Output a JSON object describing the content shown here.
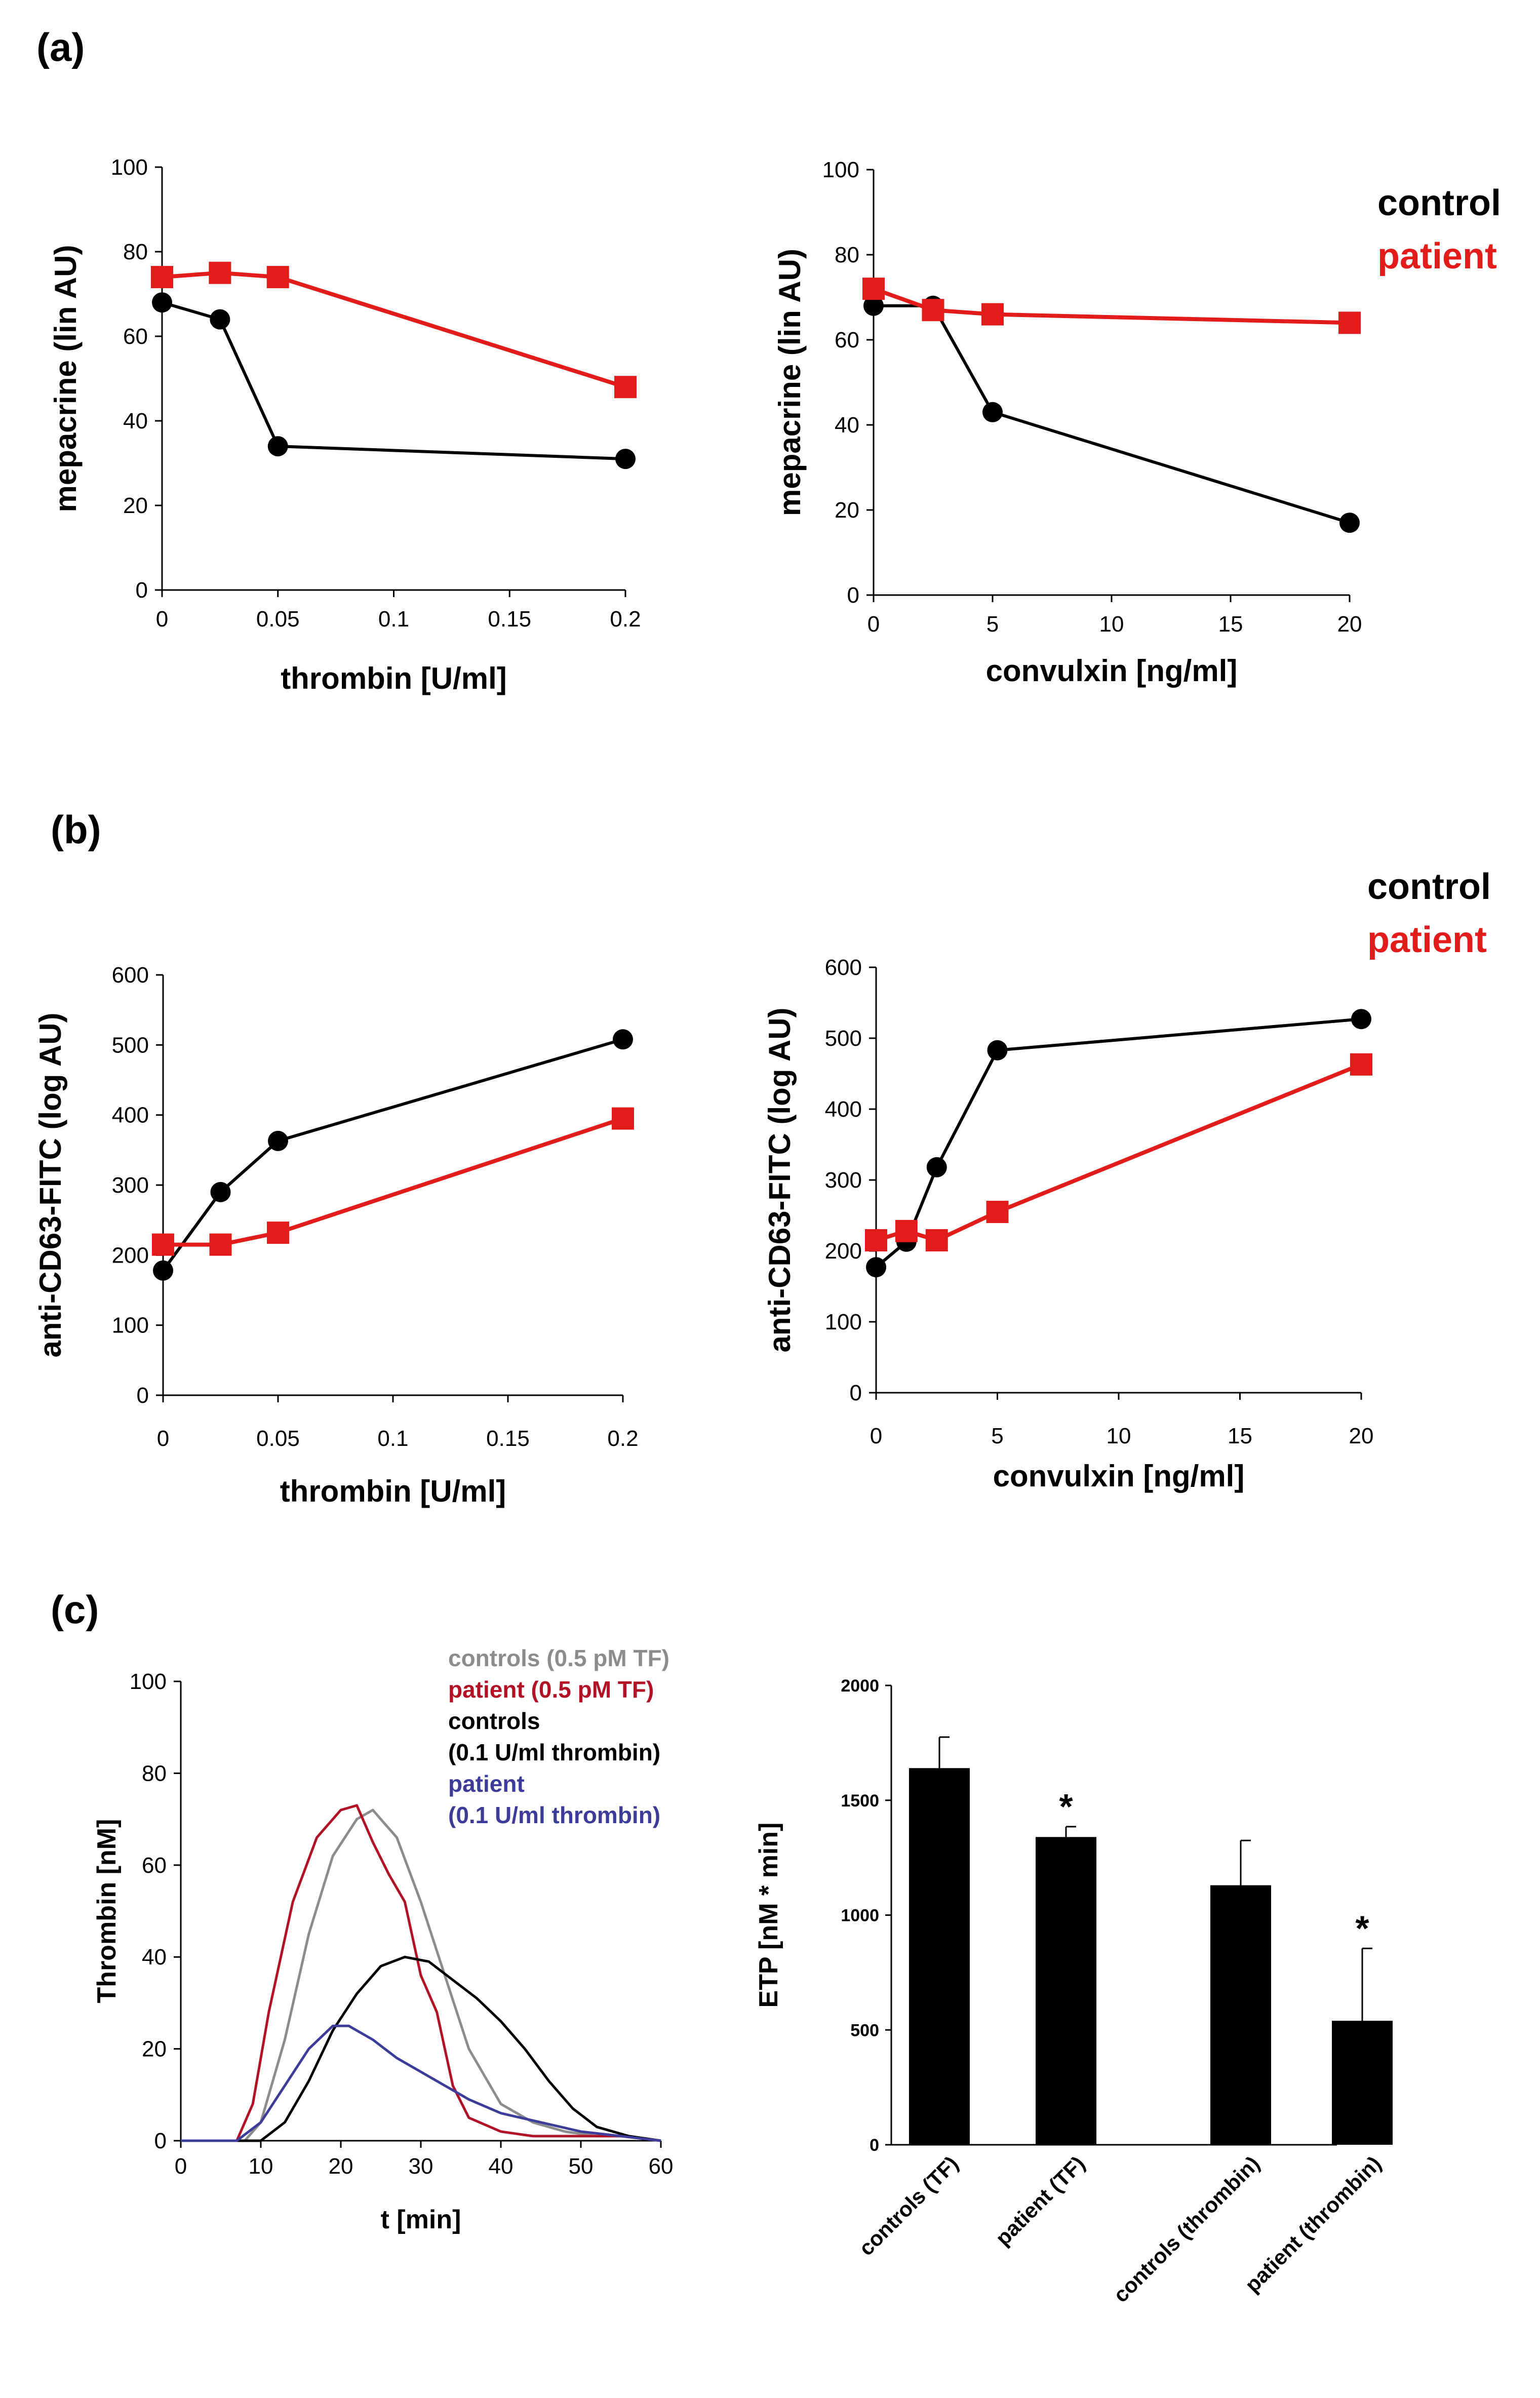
{
  "panels": {
    "a": "(a)",
    "b": "(b)",
    "c": "(c)"
  },
  "colors": {
    "control": "#000000",
    "patient": "#e21b1b",
    "controls_tf": "#8c8c8c",
    "patient_tf": "#b11226",
    "controls_thrombin": "#000000",
    "patient_thrombin": "#3d3d99"
  },
  "chart_data": [
    {
      "id": "a-left",
      "type": "line",
      "title": "",
      "xlabel": "thrombin [U/ml]",
      "ylabel": "mepacrine (lin AU)",
      "xlim": [
        0,
        0.2
      ],
      "ylim": [
        0,
        100
      ],
      "xticks": [
        0,
        0.05,
        0.1,
        0.15,
        0.2
      ],
      "xtick_labels": [
        "0",
        "0.05",
        "0.1",
        "0.15",
        "0.2"
      ],
      "yticks": [
        0,
        20,
        40,
        60,
        80,
        100
      ],
      "series": [
        {
          "name": "control",
          "marker": "circle",
          "x": [
            0,
            0.025,
            0.05,
            0.2
          ],
          "y": [
            68,
            64,
            34,
            31
          ]
        },
        {
          "name": "patient",
          "marker": "square",
          "x": [
            0,
            0.025,
            0.05,
            0.2
          ],
          "y": [
            74,
            75,
            74,
            48
          ]
        }
      ]
    },
    {
      "id": "a-right",
      "type": "line",
      "title": "",
      "xlabel": "convulxin [ng/ml]",
      "ylabel": "mepacrine (lin AU)",
      "xlim": [
        0,
        20
      ],
      "ylim": [
        0,
        100
      ],
      "xticks": [
        0,
        5,
        10,
        15,
        20
      ],
      "xtick_labels": [
        "0",
        "5",
        "10",
        "15",
        "20"
      ],
      "yticks": [
        0,
        20,
        40,
        60,
        80,
        100
      ],
      "legend": [
        "control",
        "patient"
      ],
      "series": [
        {
          "name": "control",
          "marker": "circle",
          "x": [
            0,
            2.5,
            5,
            20
          ],
          "y": [
            68,
            68,
            43,
            17
          ]
        },
        {
          "name": "patient",
          "marker": "square",
          "x": [
            0,
            2.5,
            5,
            20
          ],
          "y": [
            72,
            67,
            66,
            64
          ]
        }
      ]
    },
    {
      "id": "b-left",
      "type": "line",
      "title": "",
      "xlabel": "thrombin [U/ml]",
      "ylabel": "anti-CD63-FITC (log AU)",
      "xlim": [
        0,
        0.2
      ],
      "ylim": [
        0,
        600
      ],
      "xticks": [
        0,
        0.05,
        0.1,
        0.15,
        0.2
      ],
      "xtick_labels": [
        "0",
        "0.05",
        "0.1",
        "0.15",
        "0.2"
      ],
      "yticks": [
        0,
        100,
        200,
        300,
        400,
        500,
        600
      ],
      "series": [
        {
          "name": "control",
          "marker": "circle",
          "x": [
            0,
            0.025,
            0.05,
            0.2
          ],
          "y": [
            178,
            290,
            363,
            508
          ]
        },
        {
          "name": "patient",
          "marker": "square",
          "x": [
            0,
            0.025,
            0.05,
            0.2
          ],
          "y": [
            215,
            215,
            232,
            395
          ]
        }
      ]
    },
    {
      "id": "b-right",
      "type": "line",
      "title": "",
      "xlabel": "convulxin [ng/ml]",
      "ylabel": "anti-CD63-FITC (log AU)",
      "xlim": [
        0,
        20
      ],
      "ylim": [
        0,
        600
      ],
      "xticks": [
        0,
        5,
        10,
        15,
        20
      ],
      "xtick_labels": [
        "0",
        "5",
        "10",
        "15",
        "20"
      ],
      "yticks": [
        0,
        100,
        200,
        300,
        400,
        500,
        600
      ],
      "legend": [
        "control",
        "patient"
      ],
      "series": [
        {
          "name": "control",
          "marker": "circle",
          "x": [
            0,
            1.25,
            2.5,
            5,
            20
          ],
          "y": [
            177,
            213,
            318,
            483,
            527
          ]
        },
        {
          "name": "patient",
          "marker": "square",
          "x": [
            0,
            1.25,
            2.5,
            5,
            20
          ],
          "y": [
            215,
            228,
            215,
            255,
            463
          ]
        }
      ]
    },
    {
      "id": "c-left",
      "type": "line",
      "title": "",
      "xlabel": "t [min]",
      "ylabel": "Thrombin [nM]",
      "xlim": [
        0,
        60
      ],
      "ylim": [
        0,
        100
      ],
      "xticks": [
        0,
        10,
        20,
        30,
        40,
        50,
        60
      ],
      "yticks": [
        0,
        20,
        40,
        60,
        80,
        100
      ],
      "legend": [
        "controls (0.5 pM TF)",
        "patient (0.5 pM TF)",
        "controls",
        "(0.1 U/ml thrombin)",
        "patient",
        "(0.1 U/ml thrombin)"
      ],
      "series": [
        {
          "name": "controls (0.5 pM TF)",
          "x": [
            0,
            8,
            10,
            13,
            16,
            19,
            22,
            24,
            27,
            30,
            33,
            36,
            40,
            44,
            48,
            52,
            56,
            60
          ],
          "y": [
            0,
            0,
            4,
            22,
            45,
            62,
            70,
            72,
            66,
            52,
            36,
            20,
            8,
            4,
            2,
            1,
            1,
            0
          ]
        },
        {
          "name": "patient (0.5 pM TF)",
          "x": [
            0,
            7,
            9,
            11,
            14,
            17,
            20,
            22,
            24,
            26,
            28,
            30,
            32,
            34,
            36,
            40,
            44,
            50,
            55,
            60
          ],
          "y": [
            0,
            0,
            8,
            28,
            52,
            66,
            72,
            73,
            65,
            58,
            52,
            36,
            28,
            12,
            5,
            2,
            1,
            1,
            1,
            0
          ]
        },
        {
          "name": "controls (0.1 U/ml thrombin)",
          "x": [
            0,
            10,
            13,
            16,
            19,
            22,
            25,
            28,
            31,
            34,
            37,
            40,
            43,
            46,
            49,
            52,
            56,
            60
          ],
          "y": [
            0,
            0,
            4,
            13,
            24,
            32,
            38,
            40,
            39,
            35,
            31,
            26,
            20,
            13,
            7,
            3,
            1,
            0
          ]
        },
        {
          "name": "patient (0.1 U/ml thrombin)",
          "x": [
            0,
            7,
            10,
            13,
            16,
            19,
            21,
            24,
            27,
            30,
            33,
            36,
            40,
            45,
            50,
            55,
            60
          ],
          "y": [
            0,
            0,
            4,
            12,
            20,
            25,
            25,
            22,
            18,
            15,
            12,
            9,
            6,
            4,
            2,
            1,
            0
          ]
        }
      ]
    },
    {
      "id": "c-right",
      "type": "bar",
      "title": "",
      "xlabel": "",
      "ylabel": "ETP [nM * min]",
      "ylim": [
        0,
        2000
      ],
      "yticks": [
        0,
        500,
        1000,
        1500,
        2000
      ],
      "categories": [
        "controls (TF)",
        "patient (TF)",
        "controls (thrombin)",
        "patient (thrombin)"
      ],
      "values": [
        1640,
        1340,
        1130,
        540
      ],
      "errors": [
        135,
        45,
        195,
        315
      ],
      "significance": [
        "",
        "*",
        "",
        "*"
      ]
    }
  ]
}
